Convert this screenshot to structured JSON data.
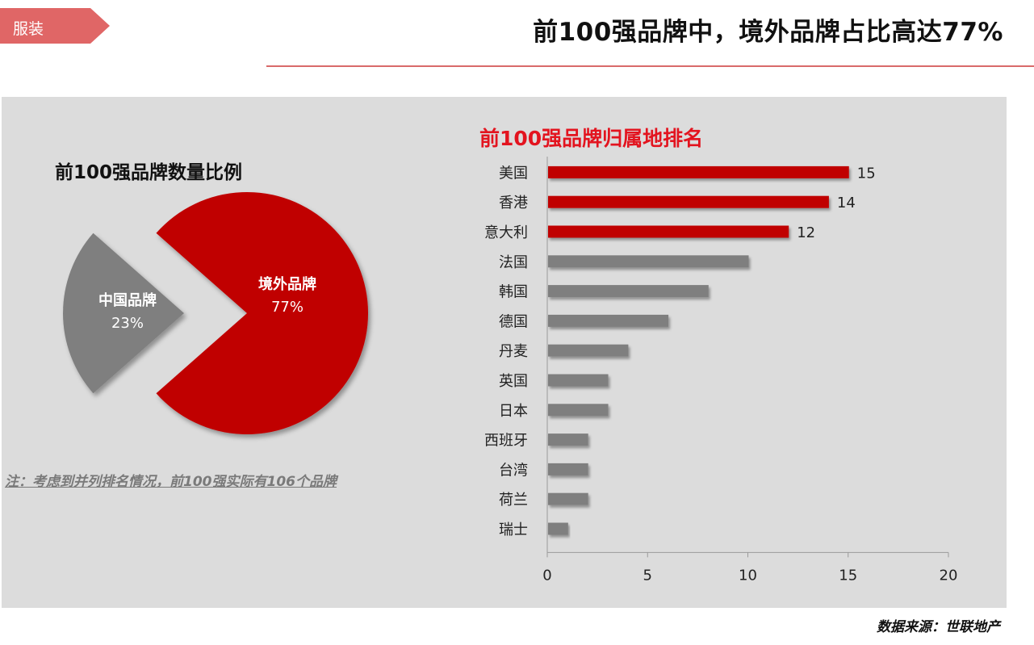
{
  "header": {
    "tag_label": "服装",
    "title": "前100强品牌中，境外品牌占比高达77%"
  },
  "pie_title": "前100强品牌数量比例",
  "note": "注：考虑到并列排名情况，前100强实际有106个品牌",
  "bar_title": "前100强品牌归属地排名",
  "source": "数据来源：世联地产",
  "colors": {
    "red": "#c00000",
    "gray": "#7f7f7f",
    "accent_text": "#e3141f"
  },
  "chart_data": [
    {
      "type": "pie",
      "title": "前100强品牌数量比例",
      "labels": [
        "境外品牌",
        "中国品牌"
      ],
      "values": [
        77,
        23
      ],
      "value_labels": [
        "77%",
        "23%"
      ],
      "colors": [
        "#c00000",
        "#7f7f7f"
      ]
    },
    {
      "type": "bar",
      "orientation": "horizontal",
      "title": "前100强品牌归属地排名",
      "categories": [
        "美国",
        "香港",
        "意大利",
        "法国",
        "韩国",
        "德国",
        "丹麦",
        "英国",
        "日本",
        "西班牙",
        "台湾",
        "荷兰",
        "瑞士"
      ],
      "values": [
        15,
        14,
        12,
        10,
        8,
        6,
        4,
        3,
        3,
        2,
        2,
        2,
        1
      ],
      "data_labels": [
        "15",
        "14",
        "12",
        "",
        "",
        "",
        "",
        "",
        "",
        "",
        "",
        "",
        ""
      ],
      "bar_colors": [
        "#c00000",
        "#c00000",
        "#c00000",
        "#7f7f7f",
        "#7f7f7f",
        "#7f7f7f",
        "#7f7f7f",
        "#7f7f7f",
        "#7f7f7f",
        "#7f7f7f",
        "#7f7f7f",
        "#7f7f7f",
        "#7f7f7f"
      ],
      "xlim": [
        0,
        20
      ],
      "xticks": [
        "0",
        "5",
        "10",
        "15",
        "20"
      ],
      "grid": false,
      "legend": "none"
    }
  ]
}
